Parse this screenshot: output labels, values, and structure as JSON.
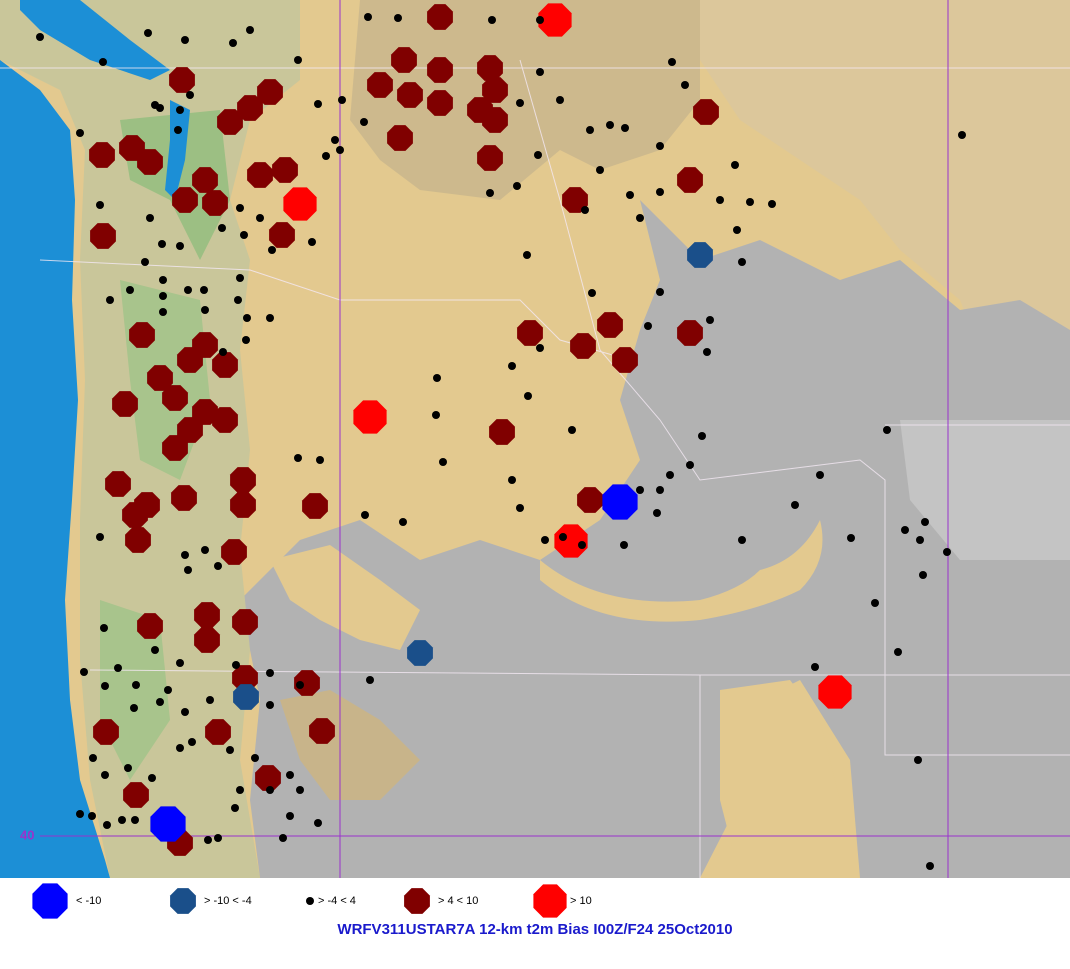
{
  "map": {
    "lat_label": "40"
  },
  "legend": [
    {
      "label": "< -10"
    },
    {
      "label": "> -10 < -4"
    },
    {
      "label": "> -4 < 4"
    },
    {
      "label": "> 4 < 10"
    },
    {
      "label": "> 10"
    }
  ],
  "title": "WRFV311USTAR7A 12-km t2m Bias I00Z/F24 25Oct2010"
}
